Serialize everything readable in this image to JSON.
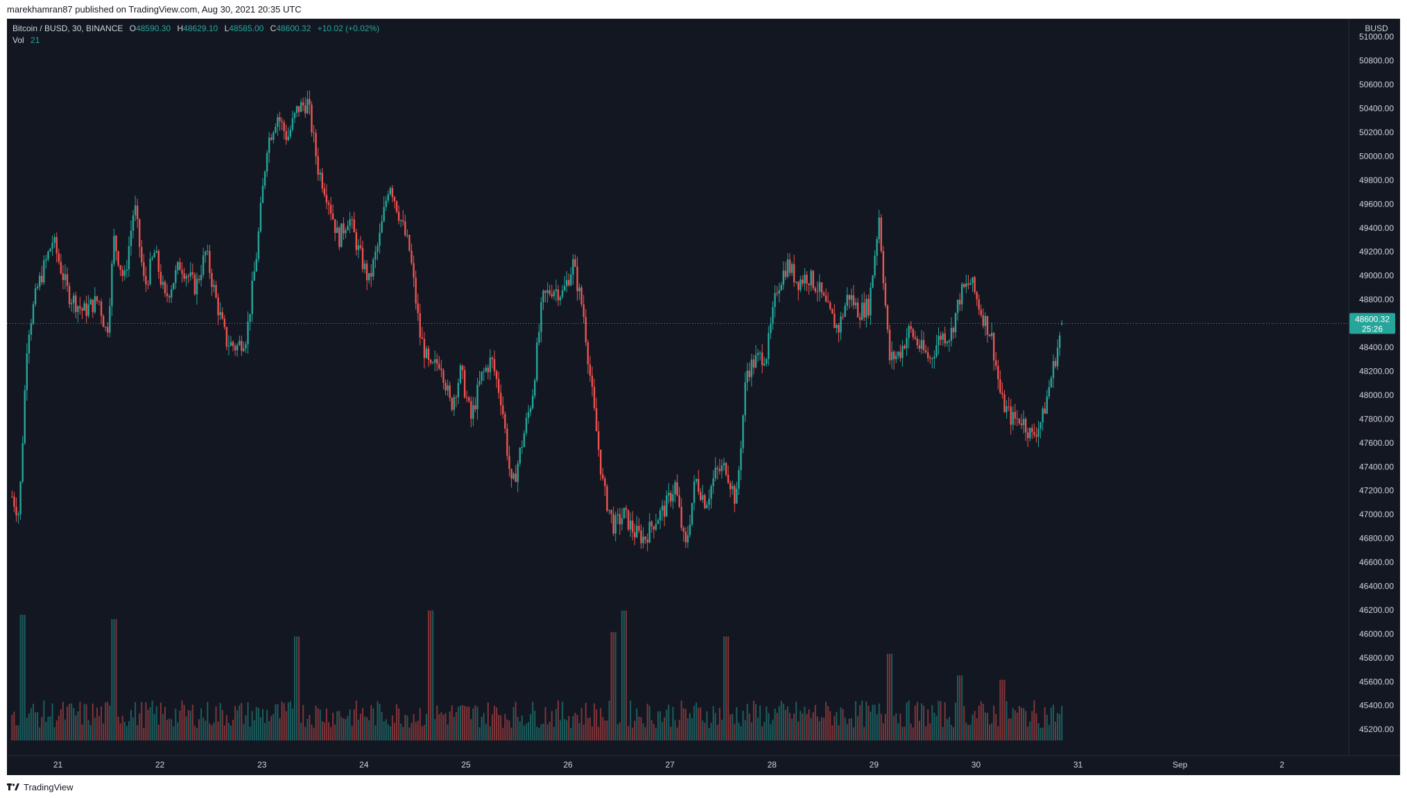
{
  "header": {
    "attribution": "marekhamran87 published on TradingView.com, Aug 30, 2021 20:35 UTC"
  },
  "legend": {
    "symbol": "Bitcoin / BUSD, 30, BINANCE",
    "open_label": "O",
    "open": "48590.30",
    "high_label": "H",
    "high": "48629.10",
    "low_label": "L",
    "low": "48585.00",
    "close_label": "C",
    "close": "48600.32",
    "change": "+10.02 (+0.02%)",
    "vol_label": "Vol",
    "vol": "21"
  },
  "price_axis": {
    "currency": "BUSD",
    "last_price": "48600.32",
    "countdown": "25:26"
  },
  "footer": {
    "brand": "TradingView"
  },
  "colors": {
    "background": "#131722",
    "up": "#26a69a",
    "down": "#ef5350",
    "axis_text": "#d1d4dc",
    "price_label_bg": "#26a69a"
  },
  "chart_data": {
    "type": "candlestick",
    "title": "Bitcoin / BUSD, 30, BINANCE",
    "interval_minutes": 30,
    "ylim": [
      45050,
      51100
    ],
    "y_ticks": [
      "51000.00",
      "50800.00",
      "50600.00",
      "50400.00",
      "50200.00",
      "50000.00",
      "49800.00",
      "49600.00",
      "49400.00",
      "49200.00",
      "49000.00",
      "48800.00",
      "48600.00",
      "48400.00",
      "48200.00",
      "48000.00",
      "47800.00",
      "47600.00",
      "47400.00",
      "47200.00",
      "47000.00",
      "46800.00",
      "46600.00",
      "46400.00",
      "46200.00",
      "46000.00",
      "45800.00",
      "45600.00",
      "45400.00",
      "45200.00"
    ],
    "x_ticks": [
      "21",
      "22",
      "23",
      "24",
      "25",
      "26",
      "27",
      "28",
      "29",
      "30",
      "31",
      "Sep",
      "2"
    ],
    "x_tick_day_index": [
      1,
      2,
      3,
      4,
      5,
      6,
      7,
      8,
      9,
      10,
      11,
      12,
      13
    ],
    "first_day_index": 0.55,
    "last_day_index": 10.85,
    "close_path": [
      [
        0.55,
        47150
      ],
      [
        0.62,
        47000
      ],
      [
        0.7,
        48500
      ],
      [
        0.8,
        48900
      ],
      [
        0.95,
        49300
      ],
      [
        1.1,
        48850
      ],
      [
        1.25,
        48700
      ],
      [
        1.4,
        48800
      ],
      [
        1.48,
        48500
      ],
      [
        1.55,
        49300
      ],
      [
        1.65,
        48950
      ],
      [
        1.75,
        49600
      ],
      [
        1.85,
        48900
      ],
      [
        1.95,
        49200
      ],
      [
        2.05,
        48800
      ],
      [
        2.2,
        49100
      ],
      [
        2.35,
        48900
      ],
      [
        2.45,
        49200
      ],
      [
        2.55,
        48800
      ],
      [
        2.65,
        48450
      ],
      [
        2.75,
        48400
      ],
      [
        2.85,
        48500
      ],
      [
        2.95,
        49200
      ],
      [
        3.05,
        50100
      ],
      [
        3.15,
        50350
      ],
      [
        3.25,
        50150
      ],
      [
        3.35,
        50400
      ],
      [
        3.45,
        50450
      ],
      [
        3.55,
        49900
      ],
      [
        3.65,
        49650
      ],
      [
        3.75,
        49300
      ],
      [
        3.85,
        49500
      ],
      [
        3.95,
        49200
      ],
      [
        4.05,
        48950
      ],
      [
        4.15,
        49300
      ],
      [
        4.25,
        49800
      ],
      [
        4.35,
        49500
      ],
      [
        4.45,
        49200
      ],
      [
        4.55,
        48500
      ],
      [
        4.65,
        48200
      ],
      [
        4.75,
        48300
      ],
      [
        4.85,
        47900
      ],
      [
        4.95,
        48200
      ],
      [
        5.05,
        47800
      ],
      [
        5.15,
        48150
      ],
      [
        5.25,
        48300
      ],
      [
        5.35,
        47950
      ],
      [
        5.45,
        47200
      ],
      [
        5.55,
        47600
      ],
      [
        5.65,
        48000
      ],
      [
        5.75,
        48800
      ],
      [
        5.85,
        48900
      ],
      [
        5.95,
        48850
      ],
      [
        6.05,
        49100
      ],
      [
        6.15,
        48700
      ],
      [
        6.25,
        47900
      ],
      [
        6.35,
        47200
      ],
      [
        6.45,
        46900
      ],
      [
        6.55,
        47000
      ],
      [
        6.65,
        46850
      ],
      [
        6.75,
        46800
      ],
      [
        6.85,
        46950
      ],
      [
        6.95,
        47050
      ],
      [
        7.05,
        47250
      ],
      [
        7.15,
        46700
      ],
      [
        7.25,
        47300
      ],
      [
        7.35,
        47100
      ],
      [
        7.45,
        47350
      ],
      [
        7.55,
        47400
      ],
      [
        7.65,
        47100
      ],
      [
        7.75,
        48200
      ],
      [
        7.85,
        48300
      ],
      [
        7.95,
        48350
      ],
      [
        8.05,
        48900
      ],
      [
        8.15,
        49100
      ],
      [
        8.25,
        48950
      ],
      [
        8.35,
        49000
      ],
      [
        8.45,
        48900
      ],
      [
        8.55,
        48700
      ],
      [
        8.65,
        48550
      ],
      [
        8.75,
        48850
      ],
      [
        8.85,
        48700
      ],
      [
        8.95,
        48750
      ],
      [
        9.05,
        49500
      ],
      [
        9.15,
        48300
      ],
      [
        9.25,
        48350
      ],
      [
        9.35,
        48550
      ],
      [
        9.45,
        48400
      ],
      [
        9.55,
        48300
      ],
      [
        9.65,
        48500
      ],
      [
        9.75,
        48500
      ],
      [
        9.85,
        48850
      ],
      [
        9.95,
        48950
      ],
      [
        10.05,
        48700
      ],
      [
        10.15,
        48500
      ],
      [
        10.25,
        47950
      ],
      [
        10.35,
        47800
      ],
      [
        10.45,
        47800
      ],
      [
        10.55,
        47650
      ],
      [
        10.65,
        47800
      ],
      [
        10.75,
        48200
      ],
      [
        10.85,
        48600
      ]
    ],
    "volume": {
      "series_name": "Vol",
      "typical": 21,
      "spikes": [
        [
          0.65,
          145
        ],
        [
          1.55,
          140
        ],
        [
          3.35,
          120
        ],
        [
          4.65,
          150
        ],
        [
          6.45,
          125
        ],
        [
          6.55,
          150
        ],
        [
          7.55,
          120
        ],
        [
          9.15,
          100
        ],
        [
          9.85,
          75
        ],
        [
          10.25,
          70
        ]
      ]
    }
  }
}
